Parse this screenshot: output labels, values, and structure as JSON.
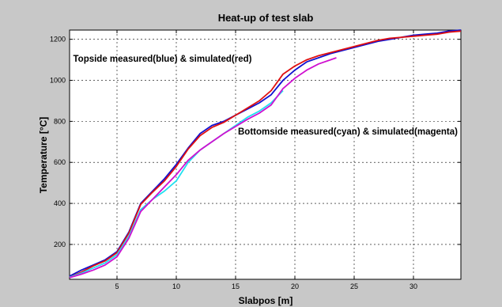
{
  "chart_data": {
    "type": "line",
    "title": "Heat-up of test slab",
    "xlabel": "Slabpos [m]",
    "ylabel": "Temperature [°C]",
    "xlim": [
      1,
      34
    ],
    "ylim": [
      30,
      1245
    ],
    "xticks": [
      5,
      10,
      15,
      20,
      25,
      30
    ],
    "yticks": [
      200,
      400,
      600,
      800,
      1000,
      1200
    ],
    "grid": true,
    "background_color": "#c8c8c8",
    "plot_background_color": "#ffffff",
    "annotations": [
      {
        "text": "Topside measured(blue) & simulated(red)",
        "x": 1.3,
        "y": 1090
      },
      {
        "text": "Bottomside measured(cyan) & simulated(magenta)",
        "x": 15.2,
        "y": 735
      }
    ],
    "series": [
      {
        "color": "#1010d0",
        "x": [
          1,
          2,
          3,
          4,
          5,
          6,
          7,
          8,
          9,
          10,
          11,
          12,
          13,
          14,
          15,
          16,
          17,
          18,
          19,
          20,
          21,
          22,
          23,
          24,
          25,
          26,
          27,
          28,
          29,
          30,
          31,
          32,
          33,
          34
        ],
        "y": [
          45,
          75,
          100,
          125,
          165,
          260,
          400,
          460,
          520,
          590,
          670,
          740,
          780,
          800,
          830,
          860,
          890,
          930,
          1000,
          1050,
          1090,
          1110,
          1130,
          1145,
          1160,
          1175,
          1190,
          1200,
          1210,
          1220,
          1225,
          1230,
          1240,
          1245
        ]
      },
      {
        "color": "#e01010",
        "x": [
          1,
          2,
          3,
          4,
          5,
          6,
          7,
          8,
          9,
          10,
          11,
          12,
          13,
          14,
          15,
          16,
          17,
          18,
          19,
          20,
          21,
          22,
          23,
          24,
          25,
          26,
          27,
          28,
          29,
          30,
          31,
          32,
          33,
          34
        ],
        "y": [
          40,
          65,
          95,
          120,
          160,
          255,
          395,
          455,
          510,
          580,
          665,
          730,
          770,
          795,
          830,
          865,
          900,
          950,
          1030,
          1070,
          1100,
          1120,
          1135,
          1150,
          1165,
          1180,
          1195,
          1205,
          1210,
          1215,
          1220,
          1225,
          1235,
          1240
        ]
      },
      {
        "color": "#20e0f0",
        "x": [
          1,
          2,
          3,
          4,
          5,
          6,
          7,
          8,
          9,
          10,
          11,
          12,
          13,
          14,
          15,
          16,
          17,
          18,
          19
        ],
        "y": [
          40,
          60,
          85,
          110,
          150,
          240,
          370,
          420,
          460,
          510,
          600,
          660,
          700,
          740,
          780,
          820,
          850,
          890,
          950
        ]
      },
      {
        "color": "#d010d0",
        "x": [
          1,
          2,
          3,
          4,
          5,
          6,
          7,
          8,
          9,
          10,
          11,
          12,
          13,
          14,
          15,
          16,
          17,
          18,
          19,
          20,
          21,
          22,
          23,
          23.5
        ],
        "y": [
          38,
          55,
          75,
          100,
          140,
          230,
          360,
          420,
          480,
          540,
          610,
          660,
          700,
          740,
          775,
          810,
          840,
          880,
          960,
          1010,
          1050,
          1080,
          1100,
          1110
        ]
      }
    ]
  }
}
